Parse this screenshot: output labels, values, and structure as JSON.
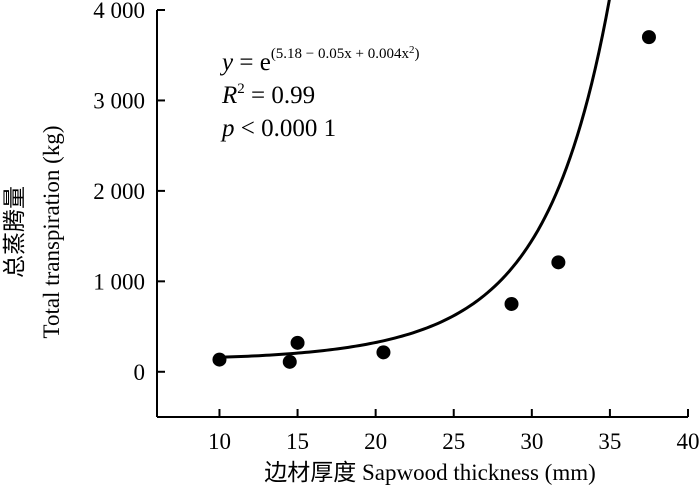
{
  "chart_data": {
    "type": "scatter",
    "title": "",
    "xlabel": "边材厚度 Sapwood thickness (mm)",
    "ylabel": "总蒸腾量 Total transpiration (kg)",
    "ylabel_zh": "总蒸腾量",
    "ylabel_en": "Total transpiration (kg)",
    "xlim": [
      6,
      40
    ],
    "ylim": [
      -500,
      4000
    ],
    "x_ticks": [
      10,
      15,
      20,
      25,
      30,
      35,
      40
    ],
    "x_tick_labels": [
      "10",
      "15",
      "20",
      "25",
      "30",
      "35",
      "40"
    ],
    "y_ticks": [
      0,
      1000,
      2000,
      3000,
      4000
    ],
    "y_tick_labels": [
      "0",
      "1 000",
      "2 000",
      "3 000",
      "4 000"
    ],
    "grid": false,
    "legend": "none",
    "series": [
      {
        "points": [
          {
            "x": 10.0,
            "y": 135
          },
          {
            "x": 14.5,
            "y": 110
          },
          {
            "x": 15.0,
            "y": 320
          },
          {
            "x": 20.5,
            "y": 215
          },
          {
            "x": 28.7,
            "y": 750
          },
          {
            "x": 31.7,
            "y": 1210
          },
          {
            "x": 37.5,
            "y": 3700
          }
        ]
      }
    ],
    "fit": {
      "formula": "y = e^(5.18 − 0.05x + 0.004x^2)",
      "a": 5.18,
      "b": -0.05,
      "c": 0.004,
      "x_range": [
        10,
        37.5
      ]
    },
    "annotations": {
      "eq_y": "y",
      "eq_eq": " = e",
      "eq_exp": "(5.18 − 0.05x + 0.004x",
      "eq_exp_sq": "2",
      "eq_exp_close": ")",
      "r2_R": "R",
      "r2_sup": "2",
      "r2_val": " = 0.99",
      "p_p": "p",
      "p_val": " < 0.000 1"
    }
  }
}
